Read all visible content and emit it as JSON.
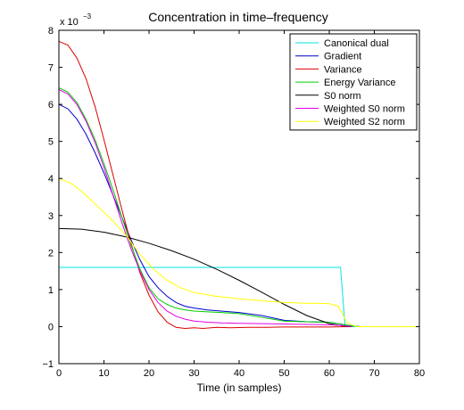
{
  "chart_data": {
    "type": "line",
    "title": "Concentration in time–frequency",
    "xlabel": "Time (in samples)",
    "ylabel": "",
    "y_exponent_label": "x 10",
    "y_exponent_power": "−3",
    "xlim": [
      0,
      80
    ],
    "ylim": [
      -1,
      8
    ],
    "xticks": [
      0,
      10,
      20,
      30,
      40,
      50,
      60,
      70,
      80
    ],
    "yticks": [
      -1,
      0,
      1,
      2,
      3,
      4,
      5,
      6,
      7,
      8
    ],
    "legend_position": "top-right",
    "grid": false,
    "series": [
      {
        "name": "Canonical dual",
        "color": "#00e5e5",
        "x": [
          0,
          62.5,
          62.5,
          63.5,
          65,
          80
        ],
        "y": [
          1.6,
          1.6,
          1.6,
          0.02,
          0.0,
          0.0
        ]
      },
      {
        "name": "Gradient",
        "color": "#0000cc",
        "x": [
          0,
          2,
          4,
          6,
          8,
          10,
          12,
          14,
          16,
          18,
          20,
          22,
          24,
          26,
          28,
          30,
          33,
          36,
          40,
          45,
          50,
          55,
          60,
          63,
          65,
          67
        ],
        "y": [
          6.0,
          5.88,
          5.6,
          5.2,
          4.7,
          4.15,
          3.55,
          2.95,
          2.35,
          1.8,
          1.35,
          1.05,
          0.82,
          0.65,
          0.55,
          0.5,
          0.45,
          0.42,
          0.38,
          0.3,
          0.17,
          0.13,
          0.12,
          0.06,
          0.02,
          0.0
        ]
      },
      {
        "name": "Variance",
        "color": "#dd0000",
        "x": [
          0,
          2,
          4,
          6,
          8,
          10,
          12,
          14,
          16,
          18,
          20,
          22,
          24,
          26,
          28,
          30,
          32,
          35,
          38,
          42,
          46,
          50,
          55,
          60,
          65
        ],
        "y": [
          7.7,
          7.6,
          7.25,
          6.7,
          5.95,
          5.05,
          4.1,
          3.15,
          2.25,
          1.45,
          0.85,
          0.4,
          0.12,
          -0.02,
          -0.05,
          -0.03,
          -0.05,
          -0.02,
          -0.03,
          -0.02,
          -0.02,
          -0.01,
          -0.01,
          -0.01,
          0.0
        ]
      },
      {
        "name": "Energy Variance",
        "color": "#00cc00",
        "x": [
          0,
          2,
          4,
          6,
          8,
          10,
          12,
          14,
          16,
          18,
          20,
          22,
          24,
          26,
          28,
          30,
          33,
          36,
          40,
          45,
          50,
          55,
          60,
          63,
          65,
          67
        ],
        "y": [
          6.45,
          6.33,
          6.05,
          5.6,
          5.05,
          4.4,
          3.7,
          2.95,
          2.2,
          1.55,
          1.05,
          0.75,
          0.6,
          0.5,
          0.45,
          0.42,
          0.4,
          0.38,
          0.35,
          0.25,
          0.15,
          0.13,
          0.12,
          0.06,
          0.02,
          0.0
        ]
      },
      {
        "name": "S0 norm",
        "color": "#000000",
        "x": [
          0,
          5,
          10,
          15,
          20,
          25,
          30,
          35,
          40,
          45,
          50,
          55,
          60,
          63,
          65
        ],
        "y": [
          2.65,
          2.63,
          2.55,
          2.42,
          2.25,
          2.05,
          1.82,
          1.55,
          1.25,
          0.93,
          0.6,
          0.3,
          0.08,
          0.02,
          0.0
        ]
      },
      {
        "name": "Weighted S0 norm",
        "color": "#e600e6",
        "x": [
          0,
          2,
          4,
          6,
          8,
          10,
          12,
          14,
          16,
          18,
          20,
          22,
          24,
          26,
          28,
          30,
          33,
          36,
          40,
          45,
          50,
          55,
          60,
          63,
          65
        ],
        "y": [
          6.4,
          6.28,
          6.0,
          5.55,
          4.98,
          4.3,
          3.55,
          2.8,
          2.1,
          1.5,
          1.0,
          0.65,
          0.42,
          0.28,
          0.2,
          0.15,
          0.12,
          0.1,
          0.09,
          0.08,
          0.07,
          0.06,
          0.05,
          0.03,
          0.0
        ]
      },
      {
        "name": "Weighted S2 norm",
        "color": "#ffff00",
        "x": [
          0,
          3,
          6,
          9,
          12,
          15,
          18,
          21,
          24,
          27,
          30,
          35,
          40,
          45,
          50,
          55,
          60,
          62,
          64,
          66,
          70,
          80
        ],
        "y": [
          4.0,
          3.85,
          3.55,
          3.2,
          2.85,
          2.45,
          1.95,
          1.55,
          1.25,
          1.05,
          0.92,
          0.82,
          0.75,
          0.7,
          0.65,
          0.63,
          0.62,
          0.55,
          0.1,
          0.0,
          0.0,
          0.0
        ]
      }
    ]
  }
}
